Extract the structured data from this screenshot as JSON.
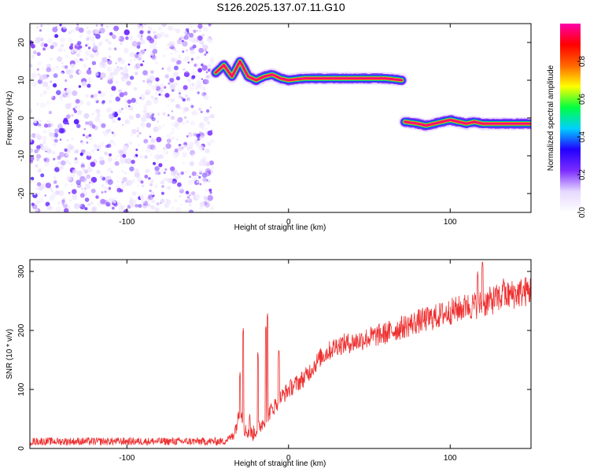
{
  "figure": {
    "title": "S126.2025.137.07.11.G10"
  },
  "chart_data": [
    {
      "type": "heatmap",
      "xlabel": "Height of straight line (km)",
      "ylabel": "Frequency (Hz)",
      "xlim": [
        -160,
        150
      ],
      "ylim": [
        -25,
        25
      ],
      "x_ticks": [
        -100,
        0,
        100
      ],
      "y_ticks": [
        -20,
        -10,
        0,
        10,
        20
      ],
      "colorbar": {
        "label": "Normalized spectral amplitude",
        "range": [
          0,
          1
        ],
        "ticks": [
          0.0,
          0.2,
          0.4,
          0.6,
          0.8
        ],
        "colors": [
          "#ffffff",
          "#e6d8ff",
          "#7b2cff",
          "#2200ff",
          "#00d0ff",
          "#00ff40",
          "#ffff00",
          "#ff6600",
          "#ff0000",
          "#ff00aa"
        ]
      },
      "noise_region": {
        "x": [
          -160,
          -47
        ],
        "frequency": [
          -25,
          25
        ],
        "amplitude": [
          0.0,
          0.15
        ]
      },
      "ridges": [
        {
          "points": [
            [
              -45,
              12
            ],
            [
              -40,
              14
            ],
            [
              -35,
              11
            ],
            [
              -30,
              15
            ],
            [
              -25,
              11
            ],
            [
              -20,
              10
            ],
            [
              -15,
              11
            ],
            [
              -10,
              11.5
            ],
            [
              -5,
              10.5
            ],
            [
              0,
              10
            ],
            [
              10,
              10.5
            ],
            [
              20,
              10.5
            ],
            [
              30,
              10.5
            ],
            [
              40,
              10.5
            ],
            [
              50,
              10.5
            ],
            [
              60,
              10.5
            ],
            [
              70,
              10
            ]
          ],
          "peak_amplitude": 0.97
        },
        {
          "points": [
            [
              72,
              -1
            ],
            [
              80,
              -1.5
            ],
            [
              85,
              -2
            ],
            [
              90,
              -1.5
            ],
            [
              95,
              -1
            ],
            [
              100,
              -0.5
            ],
            [
              105,
              -1
            ],
            [
              110,
              -1.5
            ],
            [
              115,
              -1
            ],
            [
              120,
              -1.5
            ],
            [
              130,
              -1.5
            ],
            [
              140,
              -1.5
            ],
            [
              150,
              -1.5
            ]
          ],
          "peak_amplitude": 0.97
        }
      ]
    },
    {
      "type": "line",
      "xlabel": "Height of straight line (km)",
      "ylabel": "SNR (10 * v/v)",
      "xlim": [
        -160,
        150
      ],
      "ylim": [
        0,
        320
      ],
      "x_ticks": [
        -100,
        0,
        100
      ],
      "y_ticks": [
        0,
        100,
        200,
        300
      ],
      "series": [
        {
          "color": "#ee3030",
          "trend": [
            [
              -160,
              12
            ],
            [
              -40,
              12
            ],
            [
              -35,
              20
            ],
            [
              -32,
              40
            ],
            [
              -30,
              70
            ],
            [
              -27,
              30
            ],
            [
              -22,
              25
            ],
            [
              -17,
              40
            ],
            [
              -12,
              60
            ],
            [
              -5,
              85
            ],
            [
              0,
              100
            ],
            [
              10,
              120
            ],
            [
              20,
              155
            ],
            [
              30,
              175
            ],
            [
              40,
              180
            ],
            [
              50,
              188
            ],
            [
              60,
              195
            ],
            [
              70,
              205
            ],
            [
              80,
              215
            ],
            [
              90,
              222
            ],
            [
              100,
              232
            ],
            [
              110,
              240
            ],
            [
              120,
              245
            ],
            [
              130,
              255
            ],
            [
              140,
              262
            ],
            [
              150,
              268
            ]
          ],
          "spikes": [
            [
              -30,
              130
            ],
            [
              -28,
              205
            ],
            [
              -24,
              60
            ],
            [
              -19,
              165
            ],
            [
              -14,
              210
            ],
            [
              -13,
              230
            ],
            [
              -6,
              170
            ],
            [
              87,
              160
            ],
            [
              95,
              250
            ],
            [
              103,
              205
            ],
            [
              110,
              255
            ],
            [
              117,
              300
            ],
            [
              120,
              320
            ],
            [
              122,
              190
            ],
            [
              133,
              290
            ]
          ],
          "noise": 12
        }
      ]
    }
  ]
}
